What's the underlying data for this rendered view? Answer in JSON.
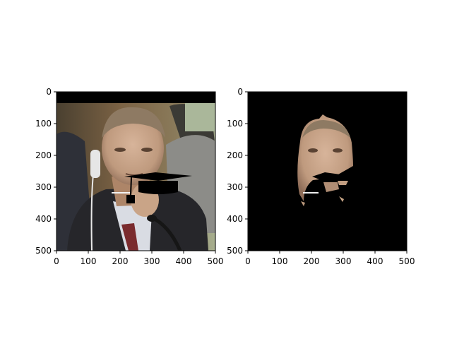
{
  "chart_data": [
    {
      "type": "image",
      "panel": "left",
      "content": "photograph of a man in a suit with a black graduation-cap overlay",
      "xlim": [
        0,
        500
      ],
      "ylim": [
        500,
        0
      ],
      "xticks": [
        0,
        100,
        200,
        300,
        400,
        500
      ],
      "yticks": [
        0,
        100,
        200,
        300,
        400,
        500
      ],
      "grid": false
    },
    {
      "type": "image",
      "panel": "right",
      "content": "segmentation mask: only the face region visible on a black background",
      "xlim": [
        0,
        500
      ],
      "ylim": [
        500,
        0
      ],
      "xticks": [
        0,
        100,
        200,
        300,
        400,
        500
      ],
      "yticks": [
        0,
        100,
        200,
        300,
        400,
        500
      ],
      "grid": false
    }
  ],
  "colors": {
    "mask_background": "#000000",
    "skin": "#c7a586",
    "suit": "#26262a",
    "shirt": "#d9dce3",
    "tie": "#7a2b2e",
    "hair": "#8e7a63"
  }
}
